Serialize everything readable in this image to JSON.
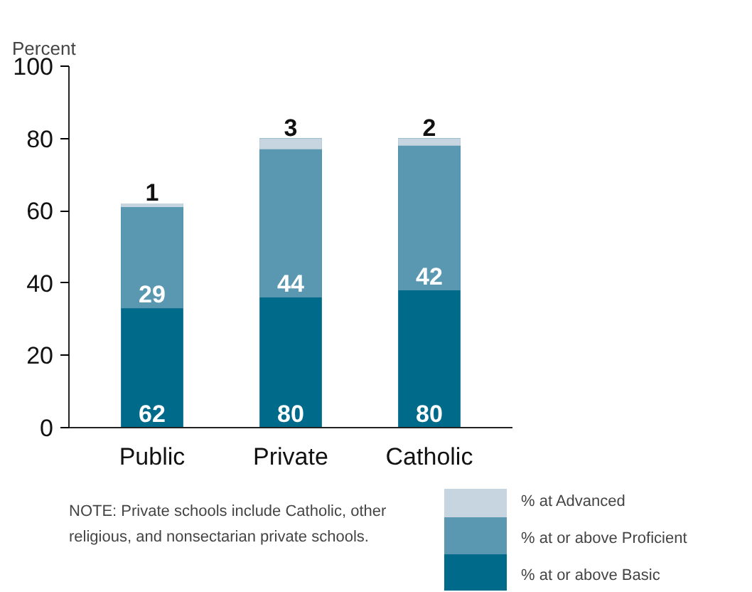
{
  "chart_data": {
    "type": "bar",
    "ylabel": "Percent",
    "categories": [
      "Public",
      "Private",
      "Catholic"
    ],
    "ylim": [
      0,
      100
    ],
    "yticks": [
      0,
      20,
      40,
      60,
      80,
      100
    ],
    "grid": false,
    "legend": "bottom right",
    "data_labels": true,
    "series": [
      {
        "name": "% at or above Basic",
        "color": "#006a8a",
        "values": [
          62,
          80,
          80
        ],
        "base": [
          0,
          0,
          0
        ]
      },
      {
        "name": "% at or above Proficient",
        "color": "#5a98b2",
        "values": [
          29,
          44,
          42
        ],
        "base": [
          33,
          36,
          38
        ]
      },
      {
        "name": "% at Advanced",
        "color": "#c6d5df",
        "values": [
          1,
          3,
          2
        ],
        "base": [
          61,
          77,
          78
        ]
      }
    ],
    "annotations": [
      "NOTE: Private schools include Catholic, other religious, and nonsectarian private schools."
    ]
  }
}
